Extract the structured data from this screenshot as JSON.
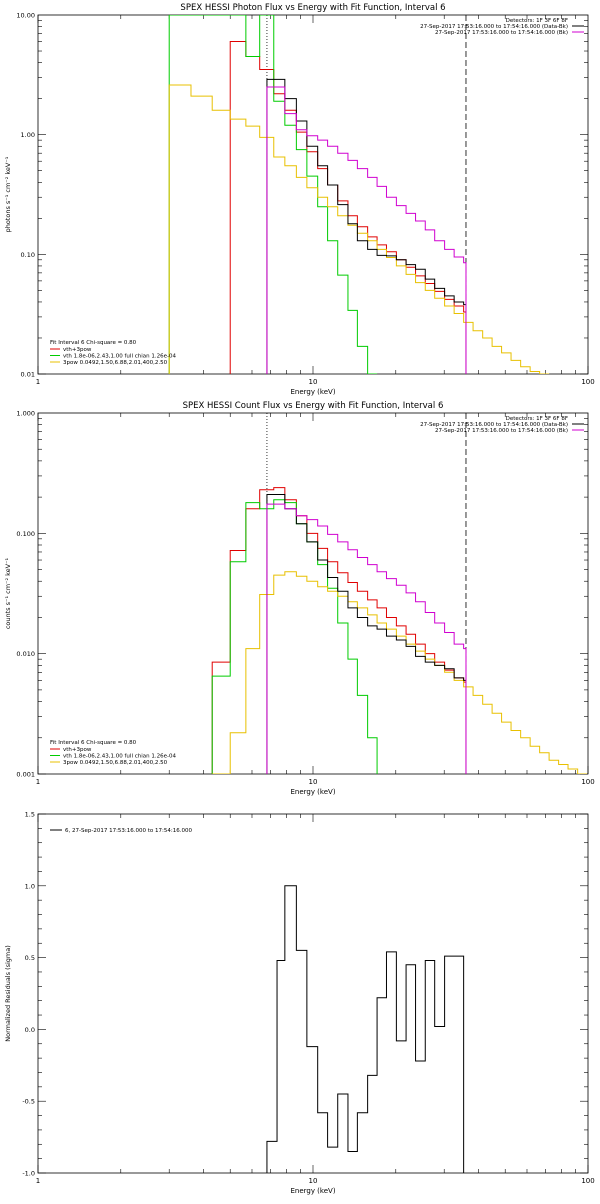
{
  "chart_data": [
    {
      "type": "line",
      "title": "SPEX HESSI Photon Flux vs Energy with Fit Function, Interval 6",
      "xlabel": "Energy (keV)",
      "ylabel": "photons s⁻¹ cm⁻² keV⁻¹",
      "xscale": "log",
      "yscale": "log",
      "xlim": [
        1,
        100
      ],
      "ylim": [
        0.01,
        10
      ],
      "xticks": [
        {
          "v": 1,
          "label": "1"
        },
        {
          "v": 10,
          "label": "10"
        },
        {
          "v": 100,
          "label": "100"
        }
      ],
      "yticks": [
        {
          "v": 0.01,
          "label": "0.01"
        },
        {
          "v": 0.1,
          "label": "0.10"
        },
        {
          "v": 1,
          "label": "1.00"
        },
        {
          "v": 10,
          "label": "10.00"
        }
      ],
      "vlines": [
        {
          "x": 6.8,
          "style": "dotted"
        },
        {
          "x": 36,
          "style": "dashed"
        }
      ],
      "header": [
        "Detectors: 1F 3F 6F 8F",
        "27-Sep-2017 17:53:16.000 to 17:54:16.000 (Data-Bk)",
        "27-Sep-2017 17:53:16.000 to 17:54:16.000 (Bk)"
      ],
      "legend_title": "Fit Interval 6   Chi-square = 0.80",
      "legend_position": "bottom-left",
      "series": [
        {
          "name": "vth+3pow",
          "color": "#e00000",
          "edges": [
            5,
            5.7,
            6.4,
            7.2,
            7.9,
            8.7,
            9.5,
            10.4,
            11.3,
            12.3,
            13.4,
            14.5,
            15.8,
            17.1,
            18.5,
            20.1,
            21.8,
            23.6,
            25.6,
            27.7,
            30.1,
            32.6,
            35.3,
            36
          ],
          "values": [
            6.0,
            4.5,
            3.5,
            2.2,
            1.6,
            1.05,
            0.72,
            0.52,
            0.38,
            0.28,
            0.21,
            0.17,
            0.14,
            0.12,
            0.105,
            0.09,
            0.078,
            0.066,
            0.057,
            0.049,
            0.042,
            0.037,
            0.033
          ]
        },
        {
          "name": "vth 1.8e-06,2.43,1.00  full chian 1.26e-04",
          "color": "#00cc00",
          "edges": [
            3,
            5,
            5.7,
            6.4,
            7.2,
            7.9,
            8.7,
            9.5,
            10.4,
            11.3,
            12.3,
            13.4,
            14.5,
            15.8,
            17.1
          ],
          "values": [
            10,
            10,
            4.5,
            10,
            1.9,
            1.2,
            0.75,
            0.45,
            0.25,
            0.13,
            0.067,
            0.034,
            0.017,
            0.009
          ]
        },
        {
          "name": "3pow 0.0492,1.50,6.88,2.01,400,2.50",
          "color": "#e8c000",
          "edges": [
            3,
            3.6,
            4.3,
            5.0,
            5.7,
            6.4,
            7.2,
            7.9,
            8.7,
            9.5,
            10.4,
            11.3,
            12.3,
            13.4,
            14.5,
            15.8,
            17.1,
            18.5,
            20.1,
            21.8,
            23.6,
            25.6,
            27.7,
            30.1,
            32.6,
            35.3,
            38.2,
            41.4,
            44.8,
            48.5,
            52.5,
            56.9,
            61.6,
            66.7,
            72.2
          ],
          "values": [
            2.6,
            2.1,
            1.6,
            1.35,
            1.18,
            0.95,
            0.65,
            0.55,
            0.44,
            0.36,
            0.3,
            0.25,
            0.21,
            0.175,
            0.15,
            0.13,
            0.11,
            0.094,
            0.08,
            0.068,
            0.058,
            0.05,
            0.043,
            0.037,
            0.032,
            0.027,
            0.023,
            0.02,
            0.017,
            0.015,
            0.013,
            0.0115,
            0.0105,
            0.01
          ]
        },
        {
          "name": "Data-Bk",
          "color": "#000000",
          "edges": [
            6.8,
            7.9,
            8.7,
            9.5,
            10.4,
            11.3,
            12.3,
            13.4,
            14.5,
            15.8,
            17.1,
            18.5,
            20.1,
            21.8,
            23.6,
            25.6,
            27.7,
            30.1,
            32.6,
            35.3,
            36
          ],
          "values": [
            2.9,
            2.0,
            1.3,
            0.8,
            0.55,
            0.38,
            0.26,
            0.18,
            0.13,
            0.11,
            0.098,
            0.097,
            0.09,
            0.082,
            0.075,
            0.062,
            0.052,
            0.045,
            0.04,
            0.038
          ]
        },
        {
          "name": "Bk",
          "color": "#d000d0",
          "edges": [
            6.8,
            7.9,
            8.7,
            9.5,
            10.4,
            11.3,
            12.3,
            13.4,
            14.5,
            15.8,
            17.1,
            18.5,
            20.1,
            21.8,
            23.6,
            25.6,
            27.7,
            30.1,
            32.6,
            35.3,
            36
          ],
          "values": [
            2.5,
            1.5,
            1.1,
            0.98,
            0.9,
            0.8,
            0.7,
            0.61,
            0.52,
            0.44,
            0.37,
            0.3,
            0.255,
            0.22,
            0.19,
            0.16,
            0.13,
            0.11,
            0.095,
            0.085,
            0.01
          ]
        }
      ]
    },
    {
      "type": "line",
      "title": "SPEX HESSI Count Flux vs Energy with Fit Function, Interval 6",
      "xlabel": "Energy (keV)",
      "ylabel": "counts s⁻¹ cm⁻² keV⁻¹",
      "xscale": "log",
      "yscale": "log",
      "xlim": [
        1,
        100
      ],
      "ylim": [
        0.001,
        1
      ],
      "xticks": [
        {
          "v": 1,
          "label": "1"
        },
        {
          "v": 10,
          "label": "10"
        },
        {
          "v": 100,
          "label": "100"
        }
      ],
      "yticks": [
        {
          "v": 0.001,
          "label": "0.001"
        },
        {
          "v": 0.01,
          "label": "0.010"
        },
        {
          "v": 0.1,
          "label": "0.100"
        },
        {
          "v": 1,
          "label": "1.000"
        }
      ],
      "vlines": [
        {
          "x": 6.8,
          "style": "dotted"
        },
        {
          "x": 36,
          "style": "dashed"
        }
      ],
      "header": [
        "Detectors: 1F 3F 6F 8F",
        "27-Sep-2017 17:53:16.000 to 17:54:16.000 (Data-Bk)",
        "27-Sep-2017 17:53:16.000 to 17:54:16.000 (Bk)"
      ],
      "legend_title": "Fit Interval 6   Chi-square = 0.80",
      "legend_position": "bottom-left",
      "series": [
        {
          "name": "vth+3pow",
          "color": "#e00000",
          "edges": [
            4.3,
            5,
            5.7,
            6.4,
            7.2,
            7.9,
            8.7,
            9.5,
            10.4,
            11.3,
            12.3,
            13.4,
            14.5,
            15.8,
            17.1,
            18.5,
            20.1,
            21.8,
            23.6,
            25.6,
            27.7,
            30.1,
            32.6,
            35.3,
            36
          ],
          "values": [
            0.0085,
            0.072,
            0.16,
            0.23,
            0.24,
            0.19,
            0.14,
            0.1,
            0.075,
            0.058,
            0.047,
            0.039,
            0.033,
            0.028,
            0.024,
            0.02,
            0.017,
            0.0145,
            0.012,
            0.01,
            0.0085,
            0.0073,
            0.0063,
            0.0058
          ]
        },
        {
          "name": "vth 1.8e-06,2.43,1.00  full chian 1.26e-04",
          "color": "#00cc00",
          "edges": [
            4.3,
            5,
            5.7,
            6.4,
            7.2,
            7.9,
            8.7,
            9.5,
            10.4,
            11.3,
            12.3,
            13.4,
            14.5,
            15.8,
            17.1
          ],
          "values": [
            0.0065,
            0.058,
            0.18,
            0.16,
            0.19,
            0.18,
            0.12,
            0.085,
            0.055,
            0.035,
            0.018,
            0.009,
            0.0045,
            0.002,
            0.001
          ]
        },
        {
          "name": "3pow 0.0492,1.50,6.88,2.01,400,2.50",
          "color": "#e8c000",
          "edges": [
            4.3,
            5,
            5.7,
            6.4,
            7.2,
            7.9,
            8.7,
            9.5,
            10.4,
            11.3,
            12.3,
            13.4,
            14.5,
            15.8,
            17.1,
            18.5,
            20.1,
            21.8,
            23.6,
            25.6,
            27.7,
            30.1,
            32.6,
            35.3,
            38.2,
            41.4,
            44.8,
            48.5,
            52.5,
            56.9,
            61.6,
            66.7,
            72.2,
            78.2,
            84.6,
            91.7,
            99.3
          ],
          "values": [
            0.001,
            0.0022,
            0.011,
            0.031,
            0.045,
            0.048,
            0.044,
            0.04,
            0.036,
            0.033,
            0.03,
            0.027,
            0.024,
            0.021,
            0.018,
            0.016,
            0.014,
            0.012,
            0.0105,
            0.009,
            0.008,
            0.007,
            0.006,
            0.0053,
            0.0045,
            0.0038,
            0.0032,
            0.0027,
            0.0023,
            0.002,
            0.0017,
            0.0015,
            0.0013,
            0.0012,
            0.0011,
            0.001
          ]
        },
        {
          "name": "Data-Bk",
          "color": "#000000",
          "edges": [
            6.8,
            7.9,
            8.7,
            9.5,
            10.4,
            11.3,
            12.3,
            13.4,
            14.5,
            15.8,
            17.1,
            18.5,
            20.1,
            21.8,
            23.6,
            25.6,
            27.7,
            30.1,
            32.6,
            35.3,
            36
          ],
          "values": [
            0.21,
            0.16,
            0.12,
            0.085,
            0.06,
            0.043,
            0.033,
            0.024,
            0.02,
            0.017,
            0.016,
            0.014,
            0.013,
            0.0115,
            0.0095,
            0.0085,
            0.008,
            0.0075,
            0.0063,
            0.006
          ]
        },
        {
          "name": "Bk",
          "color": "#d000d0",
          "edges": [
            6.8,
            7.9,
            8.7,
            9.5,
            10.4,
            11.3,
            12.3,
            13.4,
            14.5,
            15.8,
            17.1,
            18.5,
            20.1,
            21.8,
            23.6,
            25.6,
            27.7,
            30.1,
            32.6,
            35.3,
            36
          ],
          "values": [
            0.175,
            0.16,
            0.14,
            0.13,
            0.115,
            0.098,
            0.085,
            0.073,
            0.063,
            0.055,
            0.048,
            0.042,
            0.037,
            0.032,
            0.027,
            0.022,
            0.018,
            0.015,
            0.012,
            0.011,
            0.001
          ]
        }
      ]
    },
    {
      "type": "line",
      "title": "",
      "xlabel": "Energy (keV)",
      "ylabel": "Normalized Residuals (sigma)",
      "xscale": "log",
      "yscale": "linear",
      "xlim": [
        1,
        100
      ],
      "ylim": [
        -1.0,
        1.5
      ],
      "xticks": [
        {
          "v": 1,
          "label": "1"
        },
        {
          "v": 10,
          "label": "10"
        },
        {
          "v": 100,
          "label": "100"
        }
      ],
      "yticks": [
        {
          "v": -1.0,
          "label": "-1.0"
        },
        {
          "v": -0.5,
          "label": "-0.5"
        },
        {
          "v": 0.0,
          "label": "0.0"
        },
        {
          "v": 0.5,
          "label": "0.5"
        },
        {
          "v": 1.0,
          "label": "1.0"
        },
        {
          "v": 1.5,
          "label": "1.5"
        }
      ],
      "vlines": [],
      "header": [],
      "legend_title": "",
      "legend_position": "top-left",
      "series": [
        {
          "name": "6, 27-Sep-2017 17:53:16.000 to 17:54:16.000",
          "color": "#000000",
          "edges": [
            6.8,
            7.4,
            7.9,
            8.7,
            9.5,
            10.4,
            11.3,
            12.3,
            13.4,
            14.5,
            15.8,
            17.1,
            18.5,
            20.1,
            21.8,
            23.6,
            25.6,
            27.7,
            30.1,
            32.6,
            35.3
          ],
          "values": [
            -0.78,
            0.48,
            1.0,
            0.55,
            -0.12,
            -0.58,
            -0.82,
            -0.45,
            -0.85,
            -0.58,
            -0.32,
            0.22,
            0.54,
            -0.08,
            0.45,
            -0.22,
            0.48,
            0.02,
            0.51,
            0.51
          ]
        }
      ]
    }
  ]
}
